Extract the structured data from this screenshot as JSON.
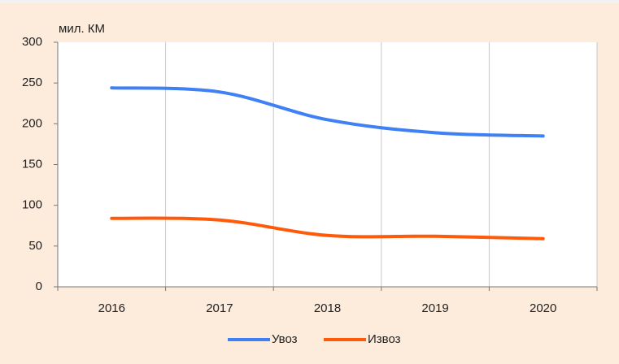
{
  "chart_data": {
    "type": "line",
    "y_axis_label": "мил. КМ",
    "categories": [
      "2016",
      "2017",
      "2018",
      "2019",
      "2020"
    ],
    "series": [
      {
        "name": "Увоз",
        "color": "#3f80f4",
        "values": [
          244,
          239,
          205,
          189,
          185
        ]
      },
      {
        "name": "Извоз",
        "color": "#ff5a0a",
        "values": [
          84,
          82,
          63,
          62,
          59
        ]
      }
    ],
    "ylim": [
      0,
      300
    ],
    "yticks": [
      0,
      50,
      100,
      150,
      200,
      250,
      300
    ],
    "grid": "x",
    "legend": "bottom"
  }
}
